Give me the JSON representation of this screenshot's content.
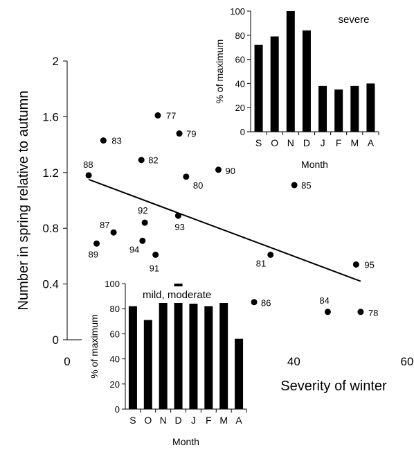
{
  "colors": {
    "ink": "#000000",
    "background": "#ffffff"
  },
  "chart_data": [
    {
      "type": "scatter",
      "title": "",
      "xlabel": "Severity of winter",
      "ylabel": "Number in spring relative to autumn",
      "xlim": [
        0,
        60
      ],
      "ylim": [
        0,
        2
      ],
      "x_ticks": [
        0,
        20,
        40,
        60
      ],
      "x_tick_labels": [
        "0",
        "20",
        "40",
        "60"
      ],
      "y_ticks": [
        0,
        0.4,
        0.8,
        1.2,
        1.6,
        2
      ],
      "y_tick_labels": [
        "0",
        "0.4",
        "0.8",
        "1.2",
        "1.6",
        "2"
      ],
      "grid": false,
      "points": [
        {
          "label": "77",
          "x": 16.0,
          "y": 1.61
        },
        {
          "label": "79",
          "x": 19.8,
          "y": 1.48
        },
        {
          "label": "83",
          "x": 6.4,
          "y": 1.43
        },
        {
          "label": "82",
          "x": 13.1,
          "y": 1.29
        },
        {
          "label": "88",
          "x": 3.8,
          "y": 1.18
        },
        {
          "label": "80",
          "x": 21.0,
          "y": 1.17
        },
        {
          "label": "90",
          "x": 26.7,
          "y": 1.22
        },
        {
          "label": "85",
          "x": 40.1,
          "y": 1.11
        },
        {
          "label": "92",
          "x": 13.7,
          "y": 0.84
        },
        {
          "label": "93",
          "x": 19.6,
          "y": 0.89
        },
        {
          "label": "87",
          "x": 8.2,
          "y": 0.77
        },
        {
          "label": "89",
          "x": 5.2,
          "y": 0.69
        },
        {
          "label": "94",
          "x": 13.3,
          "y": 0.71
        },
        {
          "label": "91",
          "x": 15.6,
          "y": 0.61
        },
        {
          "label": "81",
          "x": 35.9,
          "y": 0.61
        },
        {
          "label": "95",
          "x": 51.0,
          "y": 0.54
        },
        {
          "label": "86",
          "x": 33.0,
          "y": 0.27
        },
        {
          "label": "84",
          "x": 46.0,
          "y": 0.2
        },
        {
          "label": "78",
          "x": 51.8,
          "y": 0.2
        }
      ],
      "trend_line": {
        "x": [
          3.8,
          51.8
        ],
        "y": [
          1.15,
          0.42
        ]
      }
    },
    {
      "type": "bar",
      "title": "severe",
      "xlabel": "Month",
      "ylabel": "% of maximum",
      "ylim": [
        0,
        100
      ],
      "y_ticks": [
        0,
        20,
        40,
        60,
        80,
        100
      ],
      "categories": [
        "S",
        "O",
        "N",
        "D",
        "J",
        "F",
        "M",
        "A"
      ],
      "values": [
        72,
        79,
        100,
        84,
        38,
        35,
        38,
        40
      ]
    },
    {
      "type": "bar",
      "title": "mild, moderate",
      "xlabel": "Month",
      "ylabel": "% of maximum",
      "ylim": [
        0,
        100
      ],
      "y_ticks": [
        0,
        20,
        40,
        60,
        80,
        100
      ],
      "categories": [
        "S",
        "O",
        "N",
        "D",
        "J",
        "F",
        "M",
        "A"
      ],
      "values": [
        82,
        71,
        86,
        100,
        84,
        82,
        87,
        56
      ]
    }
  ]
}
